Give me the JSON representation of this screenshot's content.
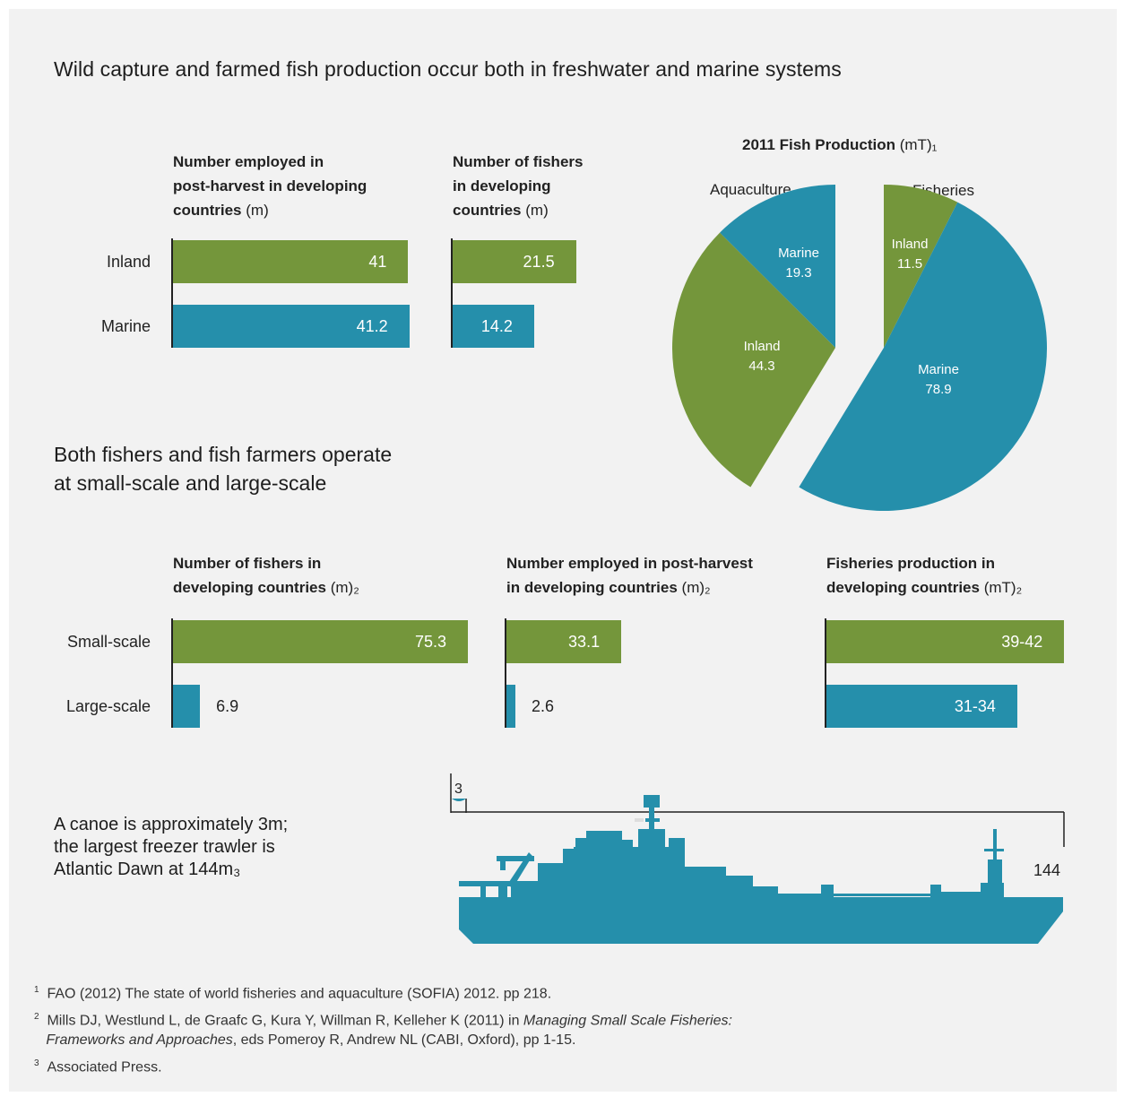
{
  "colors": {
    "green": "#74963b",
    "teal": "#258fab",
    "background": "#f2f2f2"
  },
  "section1_title": "Wild capture and farmed fish production occur both in freshwater and marine systems",
  "section2_title_line1": "Both fishers and fish farmers operate",
  "section2_title_line2": "at small-scale and large-scale",
  "top_row_labels": [
    "Inland",
    "Marine"
  ],
  "bottom_row_labels": [
    "Small-scale",
    "Large-scale"
  ],
  "chart_data": [
    {
      "type": "bar",
      "orientation": "horizontal",
      "title_lines": [
        "Number employed in",
        "post-harvest in developing",
        "countries"
      ],
      "unit": "(m)",
      "categories": [
        "Inland",
        "Marine"
      ],
      "values": [
        41,
        41.2
      ],
      "labels": [
        "41",
        "41.2"
      ]
    },
    {
      "type": "bar",
      "orientation": "horizontal",
      "title_lines": [
        "Number of fishers",
        "in developing",
        "countries"
      ],
      "unit": "(m)",
      "categories": [
        "Inland",
        "Marine"
      ],
      "values": [
        21.5,
        14.2
      ],
      "labels": [
        "21.5",
        "14.2"
      ]
    },
    {
      "type": "pie",
      "title": "2011 Fish Production",
      "unit": "(mT)₁",
      "groups": [
        "Aquaculture",
        "Fisheries"
      ],
      "slices": [
        {
          "group": "Aquaculture",
          "label": "Marine",
          "value": 19.3
        },
        {
          "group": "Aquaculture",
          "label": "Inland",
          "value": 44.3
        },
        {
          "group": "Fisheries",
          "label": "Inland",
          "value": 11.5
        },
        {
          "group": "Fisheries",
          "label": "Marine",
          "value": 78.9
        }
      ]
    },
    {
      "type": "bar",
      "orientation": "horizontal",
      "title_lines": [
        "Number of fishers in",
        "developing countries"
      ],
      "unit": "(m)₂",
      "categories": [
        "Small-scale",
        "Large-scale"
      ],
      "values": [
        75.3,
        6.9
      ],
      "labels": [
        "75.3",
        "6.9"
      ]
    },
    {
      "type": "bar",
      "orientation": "horizontal",
      "title_lines": [
        "Number employed in post-harvest",
        "in developing countries"
      ],
      "unit": "(m)₂",
      "categories": [
        "Small-scale",
        "Large-scale"
      ],
      "values": [
        33.1,
        2.6
      ],
      "labels": [
        "33.1",
        "2.6"
      ]
    },
    {
      "type": "bar",
      "orientation": "horizontal",
      "title_lines": [
        "Fisheries production in",
        "developing countries"
      ],
      "unit": "(mT)₂",
      "categories": [
        "Small-scale",
        "Large-scale"
      ],
      "values": [
        40.5,
        32.5
      ],
      "labels": [
        "39-42",
        "31-34"
      ]
    }
  ],
  "ship": {
    "text_lines": [
      "A canoe is approximately 3m;",
      "the largest freezer trawler is",
      "Atlantic Dawn at 144m₃"
    ],
    "canoe_label": "3",
    "trawler_label": "144",
    "canoe_m": 3,
    "trawler_m": 144
  },
  "notes": [
    {
      "num": "1",
      "text": "FAO (2012) The state of world fisheries and aquaculture (SOFIA) 2012. pp 218."
    },
    {
      "num": "2",
      "text_plain": "Mills DJ, Westlund L, de Graafc G, Kura Y, Willman R, Kelleher K (2011) in ",
      "text_italic": "Managing Small Scale Fisheries:",
      "line2_italic": "Frameworks and Approaches",
      "line2_plain": ", eds Pomeroy R, Andrew NL (CABI, Oxford), pp 1-15."
    },
    {
      "num": "3",
      "text": "Associated Press."
    }
  ]
}
